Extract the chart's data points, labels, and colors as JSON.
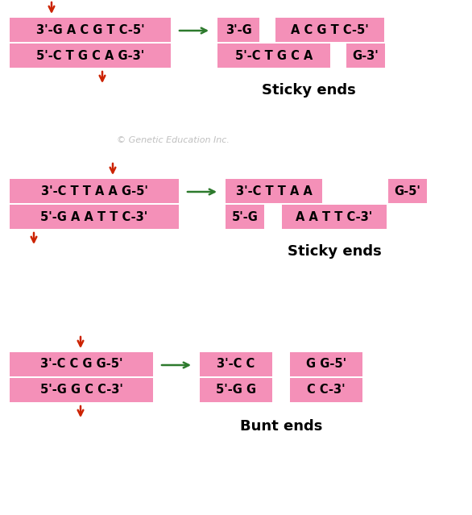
{
  "bg_color": "#ffffff",
  "pink": "#f490b8",
  "arrow_red": "#cc2200",
  "arrow_green": "#2d7a2d",
  "text_color": "#000000",
  "watermark": "© Genetic Education Inc.",
  "panels": [
    {
      "left_top": "3'-G A C G T C-5'",
      "left_bot": "5'-C T G C A G-3'",
      "res_tl": "3'-G",
      "res_bl": "5'-C T G C A",
      "res_tr": "A C G T C-5'",
      "res_br": "G-3'",
      "label": "Sticky ends"
    },
    {
      "left_top": "3'-C T T A A G-5'",
      "left_bot": "5'-G A A T T C-3'",
      "res_tl": "3'-C T T A A",
      "res_bl": "5'-G",
      "res_tr": "G-5'",
      "res_br": "A A T T C-3'",
      "label": "Sticky ends"
    },
    {
      "left_top": "3'-C C G G-5'",
      "left_bot": "5'-G G C C-3'",
      "res_tl": "3'-C C",
      "res_bl": "5'-G G",
      "res_tr": "G G-5'",
      "res_br": "C C-3'",
      "label": "Bunt ends"
    }
  ]
}
